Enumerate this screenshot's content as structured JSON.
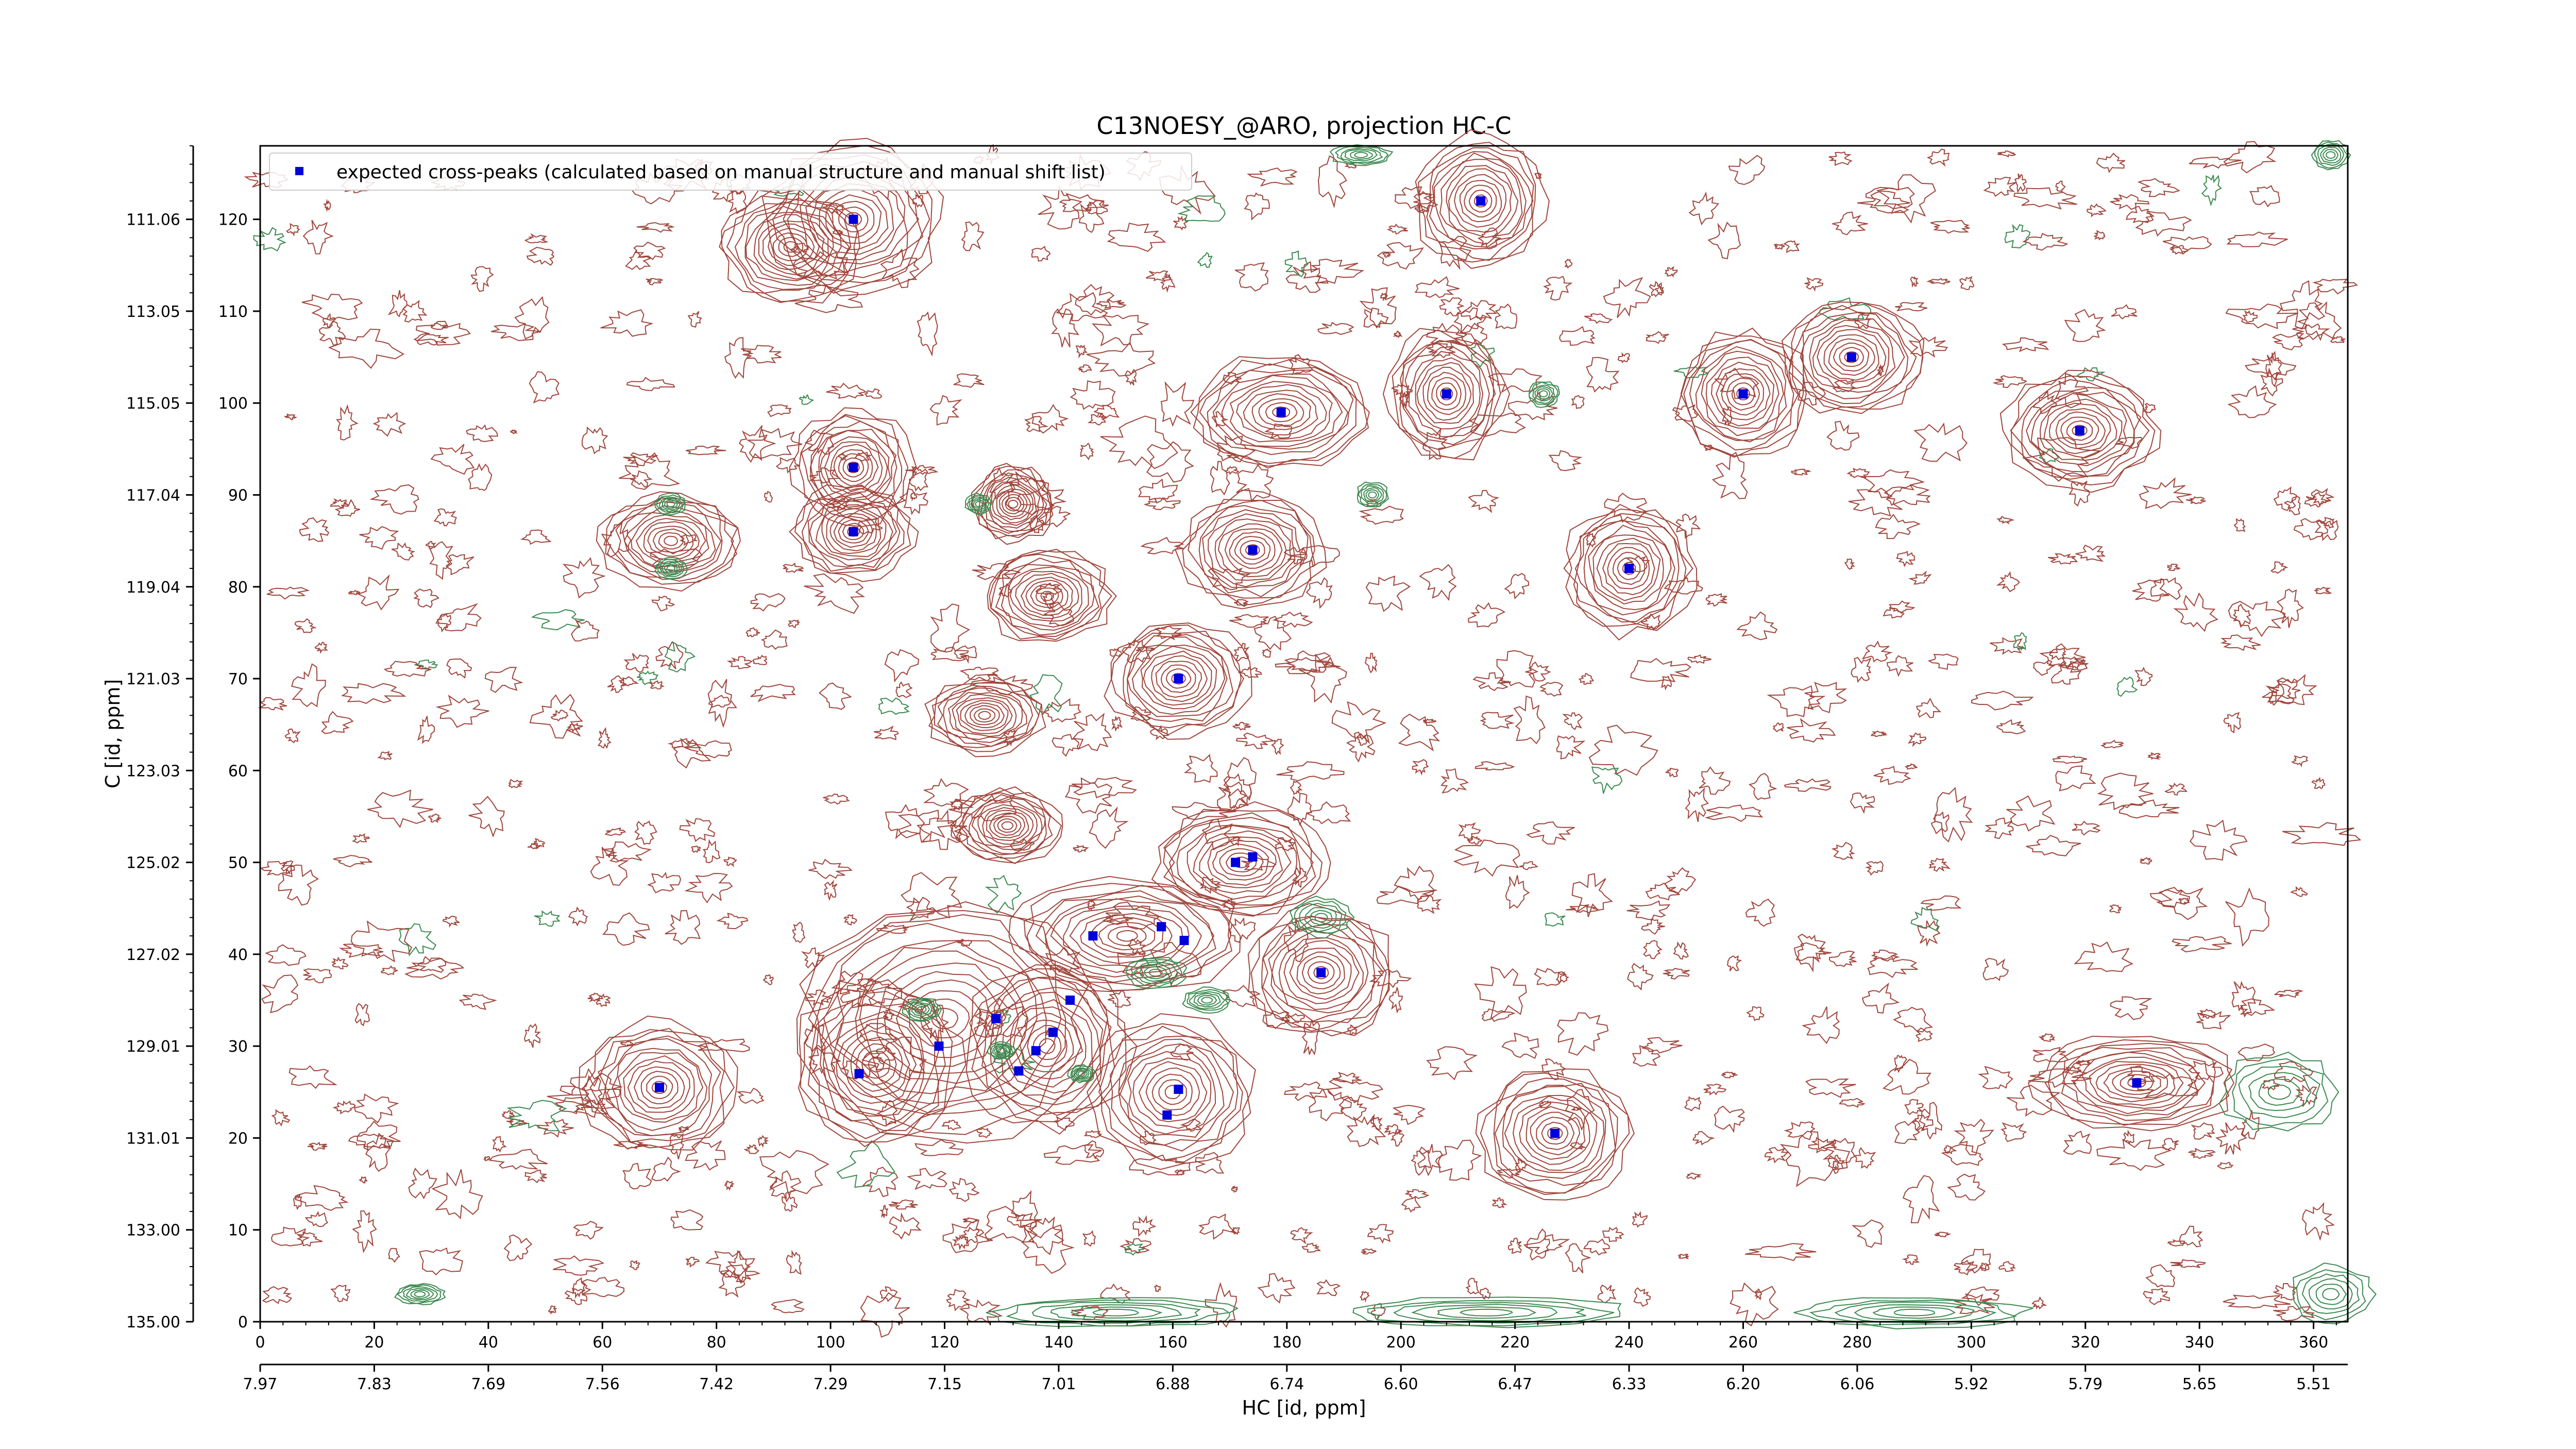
{
  "chart_data": {
    "type": "scatter",
    "title": "C13NOESY_@ARO, projection HC-C",
    "xlabel": "HC [id, ppm]",
    "ylabel": "C [id, ppm]",
    "x_index_range": [
      0,
      366
    ],
    "y_index_range": [
      0,
      128
    ],
    "x_index_ticks": [
      "0",
      "20",
      "40",
      "60",
      "80",
      "100",
      "120",
      "140",
      "160",
      "180",
      "200",
      "220",
      "240",
      "260",
      "280",
      "300",
      "320",
      "340",
      "360"
    ],
    "x_ppm_ticks": [
      "7.97",
      "7.83",
      "7.69",
      "7.56",
      "7.42",
      "7.29",
      "7.15",
      "7.01",
      "6.88",
      "6.74",
      "6.60",
      "6.47",
      "6.33",
      "6.20",
      "6.06",
      "5.92",
      "5.79",
      "5.65",
      "5.51"
    ],
    "y_index_ticks": [
      "0",
      "10",
      "20",
      "30",
      "40",
      "50",
      "60",
      "70",
      "80",
      "90",
      "100",
      "110",
      "120"
    ],
    "y_ppm_ticks": [
      "135.00",
      "133.00",
      "131.01",
      "129.01",
      "127.02",
      "125.02",
      "123.03",
      "121.03",
      "119.04",
      "117.04",
      "115.05",
      "113.05",
      "111.06"
    ],
    "legend": {
      "label": "expected cross-peaks (calculated based on manual structure and manual shift list)",
      "placement": "top-left"
    },
    "series": [
      {
        "name": "expected cross-peaks (calculated based on manual structure and manual shift list)",
        "color": "#0000dd",
        "marker": "square",
        "x": [
          104,
          214,
          104,
          104,
          179,
          208,
          260,
          279,
          319,
          174,
          240,
          161,
          171,
          174,
          146,
          158,
          162,
          186,
          70,
          105,
          119,
          129,
          133,
          136,
          139,
          142,
          161,
          159,
          227,
          329
        ],
        "y": [
          120,
          122,
          93,
          86,
          99,
          101,
          101,
          105,
          97,
          84,
          82,
          70,
          50,
          50.6,
          42,
          43,
          41.5,
          38,
          25.5,
          27,
          30,
          33,
          27.3,
          29.5,
          31.5,
          35,
          25.3,
          22.5,
          20.5,
          26
        ]
      }
    ],
    "contours": {
      "positive_color": "#a0463c",
      "negative_color": "#3c8a50",
      "positive_peaks": [
        {
          "x": 104,
          "y": 120,
          "rx": 15,
          "ry": 8
        },
        {
          "x": 93,
          "y": 117,
          "rx": 12,
          "ry": 6
        },
        {
          "x": 214,
          "y": 122,
          "rx": 11,
          "ry": 7
        },
        {
          "x": 104,
          "y": 93,
          "rx": 10,
          "ry": 6
        },
        {
          "x": 104,
          "y": 86,
          "rx": 10,
          "ry": 5
        },
        {
          "x": 72,
          "y": 85,
          "rx": 12,
          "ry": 5
        },
        {
          "x": 132,
          "y": 89,
          "rx": 7,
          "ry": 4
        },
        {
          "x": 138,
          "y": 79,
          "rx": 11,
          "ry": 5
        },
        {
          "x": 179,
          "y": 99,
          "rx": 16,
          "ry": 6
        },
        {
          "x": 208,
          "y": 101,
          "rx": 10,
          "ry": 7
        },
        {
          "x": 260,
          "y": 101,
          "rx": 11,
          "ry": 7
        },
        {
          "x": 279,
          "y": 105,
          "rx": 12,
          "ry": 6
        },
        {
          "x": 319,
          "y": 97,
          "rx": 13,
          "ry": 6
        },
        {
          "x": 174,
          "y": 84,
          "rx": 12,
          "ry": 6
        },
        {
          "x": 240,
          "y": 82,
          "rx": 11,
          "ry": 7
        },
        {
          "x": 161,
          "y": 70,
          "rx": 12,
          "ry": 6
        },
        {
          "x": 127,
          "y": 66,
          "rx": 10,
          "ry": 4
        },
        {
          "x": 131,
          "y": 54,
          "rx": 9,
          "ry": 4
        },
        {
          "x": 172,
          "y": 50,
          "rx": 15,
          "ry": 6
        },
        {
          "x": 152,
          "y": 42,
          "rx": 20,
          "ry": 6
        },
        {
          "x": 186,
          "y": 38,
          "rx": 13,
          "ry": 7
        },
        {
          "x": 70,
          "y": 25.5,
          "rx": 13,
          "ry": 7
        },
        {
          "x": 120,
          "y": 33,
          "rx": 26,
          "ry": 13
        },
        {
          "x": 108,
          "y": 28,
          "rx": 14,
          "ry": 9
        },
        {
          "x": 138,
          "y": 30,
          "rx": 14,
          "ry": 9
        },
        {
          "x": 160,
          "y": 25,
          "rx": 14,
          "ry": 8
        },
        {
          "x": 227,
          "y": 20.5,
          "rx": 13,
          "ry": 7
        },
        {
          "x": 329,
          "y": 26,
          "rx": 17,
          "ry": 5
        }
      ],
      "negative_peaks": [
        {
          "x": 116,
          "y": 34,
          "rx": 3,
          "ry": 1.2
        },
        {
          "x": 130,
          "y": 29.5,
          "rx": 2,
          "ry": 0.8
        },
        {
          "x": 144,
          "y": 27,
          "rx": 2,
          "ry": 0.8
        },
        {
          "x": 157,
          "y": 38,
          "rx": 5,
          "ry": 1.6
        },
        {
          "x": 166,
          "y": 35,
          "rx": 4,
          "ry": 1.2
        },
        {
          "x": 186,
          "y": 44,
          "rx": 5,
          "ry": 2
        },
        {
          "x": 354,
          "y": 25,
          "rx": 10,
          "ry": 4
        },
        {
          "x": 72,
          "y": 82,
          "rx": 2.5,
          "ry": 1
        },
        {
          "x": 72,
          "y": 89,
          "rx": 2.5,
          "ry": 1
        },
        {
          "x": 126,
          "y": 89,
          "rx": 2,
          "ry": 1
        },
        {
          "x": 195,
          "y": 90,
          "rx": 2.5,
          "ry": 1.3
        },
        {
          "x": 225,
          "y": 101,
          "rx": 2.5,
          "ry": 1.3
        },
        {
          "x": 193,
          "y": 127,
          "rx": 5,
          "ry": 1
        },
        {
          "x": 28,
          "y": 3,
          "rx": 4,
          "ry": 1
        },
        {
          "x": 150,
          "y": 1,
          "rx": 22,
          "ry": 1.5
        },
        {
          "x": 215,
          "y": 1,
          "rx": 25,
          "ry": 1.5
        },
        {
          "x": 290,
          "y": 1,
          "rx": 20,
          "ry": 1.5
        },
        {
          "x": 363,
          "y": 3,
          "rx": 7,
          "ry": 3
        },
        {
          "x": 363,
          "y": 127,
          "rx": 3,
          "ry": 1.5
        }
      ]
    }
  }
}
